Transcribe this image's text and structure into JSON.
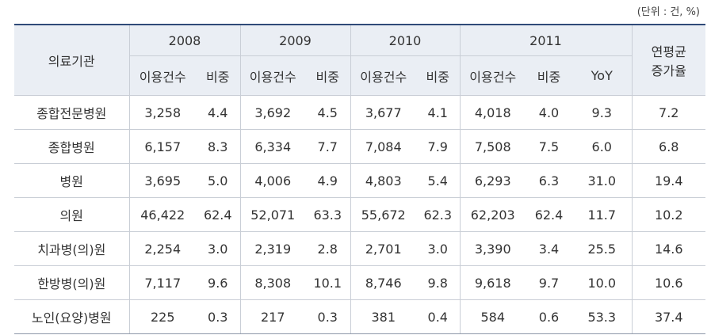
{
  "unit_note": "(단위 : 건, %)",
  "header": {
    "institution": "의료기관",
    "years": [
      "2008",
      "2009",
      "2010",
      "2011"
    ],
    "growth": [
      "연평균",
      "증가율"
    ],
    "sub": [
      "이용건수",
      "비중",
      "이용건수",
      "비중",
      "이용건수",
      "비중",
      "이용건수",
      "비중",
      "YoY"
    ]
  },
  "table": {
    "rows": [
      [
        "종합전문병원",
        "3,258",
        "4.4",
        "3,692",
        "4.5",
        "3,677",
        "4.1",
        "4,018",
        "4.0",
        "9.3",
        "7.2"
      ],
      [
        "종합병원",
        "6,157",
        "8.3",
        "6,334",
        "7.7",
        "7,084",
        "7.9",
        "7,508",
        "7.5",
        "6.0",
        "6.8"
      ],
      [
        "병원",
        "3,695",
        "5.0",
        "4,006",
        "4.9",
        "4,803",
        "5.4",
        "6,293",
        "6.3",
        "31.0",
        "19.4"
      ],
      [
        "의원",
        "46,422",
        "62.4",
        "52,071",
        "63.3",
        "55,672",
        "62.3",
        "62,203",
        "62.4",
        "11.7",
        "10.2"
      ],
      [
        "치과병(의)원",
        "2,254",
        "3.0",
        "2,319",
        "2.8",
        "2,701",
        "3.0",
        "3,390",
        "3.4",
        "25.5",
        "14.6"
      ],
      [
        "한방병(의)원",
        "7,117",
        "9.6",
        "8,308",
        "10.1",
        "8,746",
        "9.8",
        "9,618",
        "9.7",
        "10.0",
        "10.6"
      ],
      [
        "노인(요양)병원",
        "225",
        "0.3",
        "217",
        "0.3",
        "381",
        "0.4",
        "584",
        "0.6",
        "53.3",
        "37.4"
      ]
    ]
  }
}
